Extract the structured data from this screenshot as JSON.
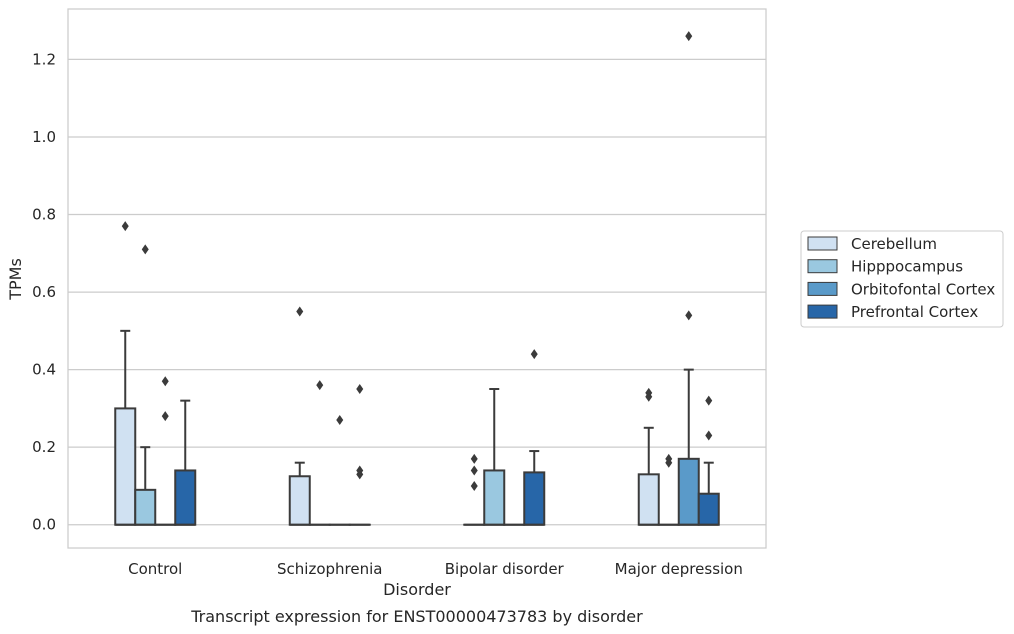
{
  "chart_data": {
    "type": "boxplot",
    "caption": "Transcript expression for ENST00000473783 by disorder",
    "xlabel": "Disorder",
    "ylabel": "TPMs",
    "ylim": [
      -0.06,
      1.33
    ],
    "yticks": [
      0.0,
      0.2,
      0.4,
      0.6,
      0.8,
      1.0,
      1.2
    ],
    "ytick_labels": [
      "0.0",
      "0.2",
      "0.4",
      "0.6",
      "0.8",
      "1.0",
      "1.2"
    ],
    "grid": "horizontal",
    "legend_position": "right",
    "categories": [
      "Control",
      "Schizophrenia",
      "Bipolar disorder",
      "Major depression"
    ],
    "series": [
      {
        "name": "Cerebellum",
        "color": "#d0e1f2",
        "boxes": [
          {
            "q1": 0.0,
            "median": 0.0,
            "q3": 0.3,
            "whisker_low": 0.0,
            "whisker_high": 0.5,
            "outliers": [
              0.77
            ]
          },
          {
            "q1": 0.0,
            "median": 0.0,
            "q3": 0.125,
            "whisker_low": 0.0,
            "whisker_high": 0.16,
            "outliers": [
              0.55
            ]
          },
          {
            "q1": 0.0,
            "median": 0.0,
            "q3": 0.0,
            "whisker_low": 0.0,
            "whisker_high": 0.0,
            "outliers": [
              0.1,
              0.14,
              0.17
            ]
          },
          {
            "q1": 0.0,
            "median": 0.0,
            "q3": 0.13,
            "whisker_low": 0.0,
            "whisker_high": 0.25,
            "outliers": [
              0.33,
              0.34
            ]
          }
        ]
      },
      {
        "name": "Hipppocampus",
        "color": "#9ac8e0",
        "boxes": [
          {
            "q1": 0.0,
            "median": 0.0,
            "q3": 0.09,
            "whisker_low": 0.0,
            "whisker_high": 0.2,
            "outliers": [
              0.71
            ]
          },
          {
            "q1": 0.0,
            "median": 0.0,
            "q3": 0.0,
            "whisker_low": 0.0,
            "whisker_high": 0.0,
            "outliers": [
              0.36
            ]
          },
          {
            "q1": 0.0,
            "median": 0.0,
            "q3": 0.14,
            "whisker_low": 0.0,
            "whisker_high": 0.35,
            "outliers": []
          },
          {
            "q1": 0.0,
            "median": 0.0,
            "q3": 0.0,
            "whisker_low": 0.0,
            "whisker_high": 0.0,
            "outliers": [
              0.16,
              0.17
            ]
          }
        ]
      },
      {
        "name": "Orbitofontal Cortex",
        "color": "#5a9ac9",
        "boxes": [
          {
            "q1": 0.0,
            "median": 0.0,
            "q3": 0.0,
            "whisker_low": 0.0,
            "whisker_high": 0.0,
            "outliers": [
              0.28,
              0.37
            ]
          },
          {
            "q1": 0.0,
            "median": 0.0,
            "q3": 0.0,
            "whisker_low": 0.0,
            "whisker_high": 0.0,
            "outliers": [
              0.27
            ]
          },
          {
            "q1": 0.0,
            "median": 0.0,
            "q3": 0.0,
            "whisker_low": 0.0,
            "whisker_high": 0.0,
            "outliers": []
          },
          {
            "q1": 0.0,
            "median": 0.0,
            "q3": 0.17,
            "whisker_low": 0.0,
            "whisker_high": 0.4,
            "outliers": [
              0.54,
              1.26
            ]
          }
        ]
      },
      {
        "name": "Prefrontal Cortex",
        "color": "#2766a8",
        "boxes": [
          {
            "q1": 0.0,
            "median": 0.0,
            "q3": 0.14,
            "whisker_low": 0.0,
            "whisker_high": 0.32,
            "outliers": []
          },
          {
            "q1": 0.0,
            "median": 0.0,
            "q3": 0.0,
            "whisker_low": 0.0,
            "whisker_high": 0.0,
            "outliers": [
              0.13,
              0.14,
              0.35
            ]
          },
          {
            "q1": 0.0,
            "median": 0.0,
            "q3": 0.135,
            "whisker_low": 0.0,
            "whisker_high": 0.19,
            "outliers": [
              0.44
            ]
          },
          {
            "q1": 0.0,
            "median": 0.0,
            "q3": 0.08,
            "whisker_low": 0.0,
            "whisker_high": 0.16,
            "outliers": [
              0.23,
              0.32
            ]
          }
        ]
      }
    ]
  }
}
